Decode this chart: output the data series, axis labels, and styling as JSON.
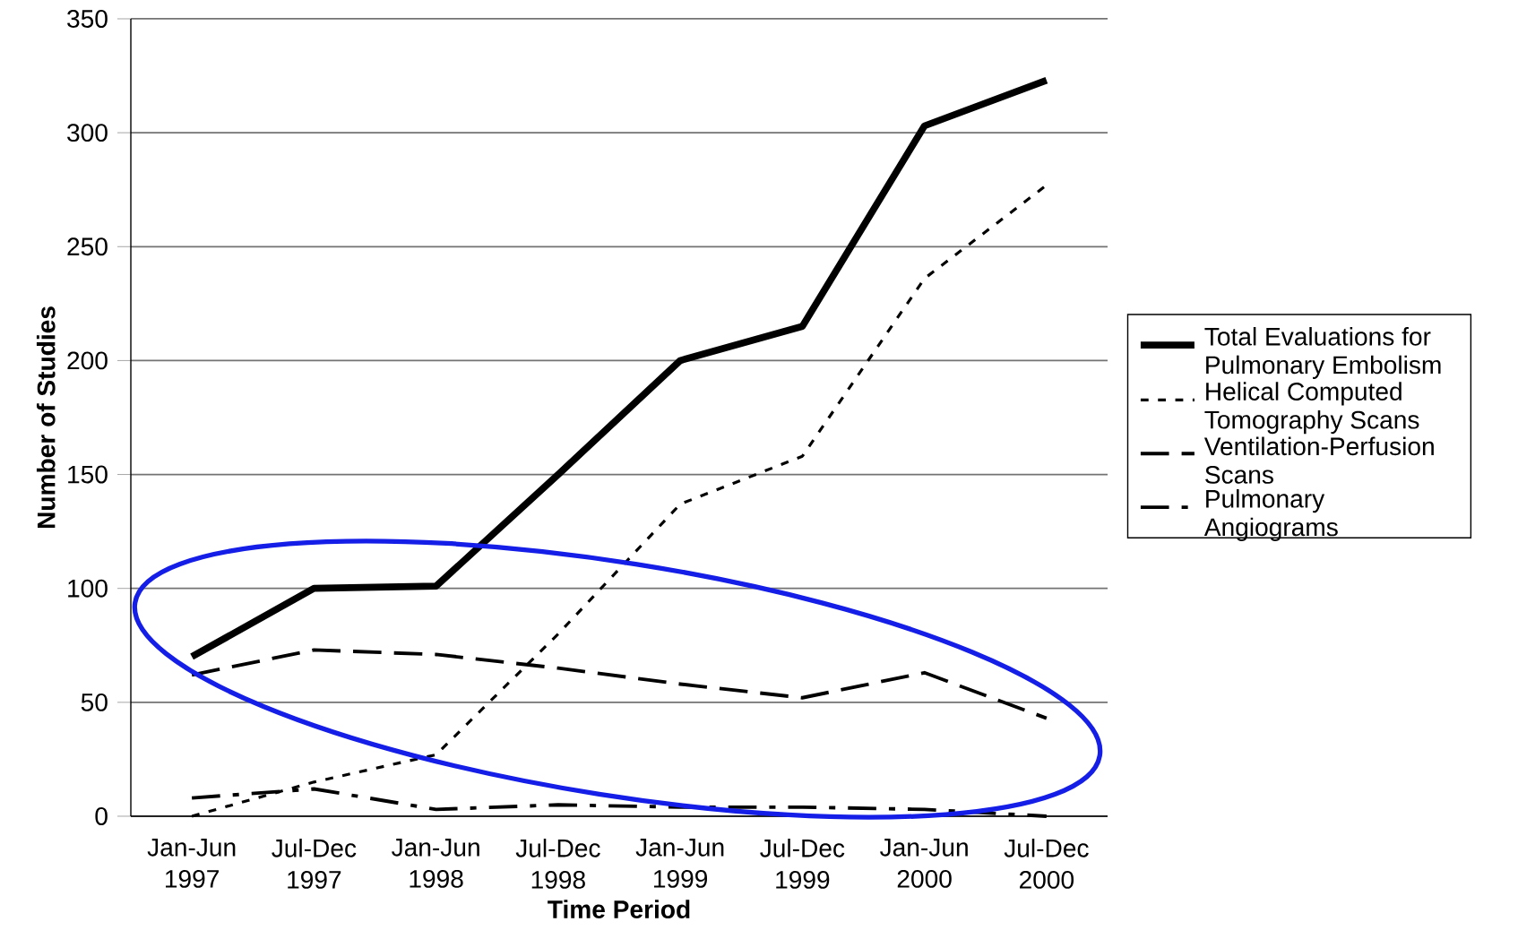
{
  "chart_data": {
    "type": "line",
    "xlabel": "Time Period",
    "ylabel": "Number of Studies",
    "categories": [
      "Jan-Jun 1997",
      "Jul-Dec 1997",
      "Jan-Jun 1998",
      "Jul-Dec 1998",
      "Jan-Jun 1999",
      "Jul-Dec 1999",
      "Jan-Jun 2000",
      "Jul-Dec 2000"
    ],
    "series": [
      {
        "name": "Total Evaluations for Pulmonary Embolism",
        "color": "#000000",
        "line_style": "solid",
        "values": [
          70,
          100,
          101,
          150,
          200,
          215,
          303,
          323
        ]
      },
      {
        "name": "Helical Computed Tomography Scans",
        "color": "#000000",
        "line_style": "dotted",
        "values": [
          0,
          15,
          27,
          80,
          137,
          158,
          236,
          277
        ]
      },
      {
        "name": "Ventilation-Perfusion Scans",
        "color": "#000000",
        "line_style": "dashed",
        "values": [
          62,
          73,
          71,
          65,
          58,
          52,
          63,
          43
        ]
      },
      {
        "name": "Pulmonary Angiograms",
        "color": "#000000",
        "line_style": "dashdot",
        "values": [
          8,
          12,
          3,
          5,
          4,
          4,
          3,
          0
        ]
      }
    ],
    "ylim": [
      0,
      350
    ],
    "yticks": [
      0,
      50,
      100,
      150,
      200,
      250,
      300,
      350
    ],
    "grid": "y",
    "legend": "right",
    "marker": "none"
  }
}
